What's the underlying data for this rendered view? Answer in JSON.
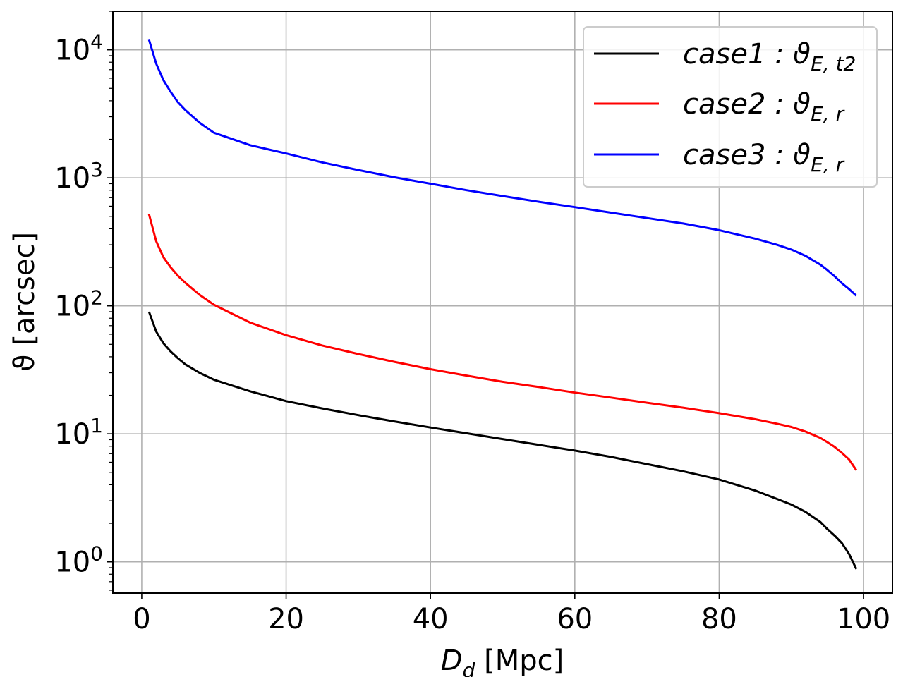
{
  "chart_data": {
    "type": "line",
    "xlabel_main": "D",
    "xlabel_sub": "d",
    "xlabel_unit": " [Mpc]",
    "ylabel": "ϑ [arcsec]",
    "xlim": [
      -4,
      104
    ],
    "ylim": [
      0.57,
      20000
    ],
    "yscale": "log",
    "grid": true,
    "legend_position": "top-right",
    "x_ticks": [
      0,
      20,
      40,
      60,
      80,
      100
    ],
    "x_tick_labels": [
      "0",
      "20",
      "40",
      "60",
      "80",
      "100"
    ],
    "y_ticks": [
      1,
      10,
      100,
      1000,
      10000
    ],
    "y_tick_labels": [
      {
        "base": "10",
        "exp": "0"
      },
      {
        "base": "10",
        "exp": "1"
      },
      {
        "base": "10",
        "exp": "2"
      },
      {
        "base": "10",
        "exp": "3"
      },
      {
        "base": "10",
        "exp": "4"
      }
    ],
    "series": [
      {
        "name": "case1 : ϑ_{E, t2}",
        "legend_main": "case1 : ϑ",
        "legend_sub": "E, t2",
        "color": "#000000",
        "x": [
          1,
          2,
          3,
          4,
          5,
          6,
          8,
          10,
          15,
          20,
          25,
          30,
          35,
          40,
          45,
          50,
          55,
          60,
          65,
          70,
          75,
          80,
          85,
          88,
          90,
          92,
          94,
          95,
          96,
          97,
          98,
          99
        ],
        "y": [
          90,
          63,
          51,
          44,
          39,
          35,
          30,
          26.5,
          21.5,
          18,
          15.8,
          14,
          12.5,
          11.2,
          10.1,
          9.1,
          8.2,
          7.4,
          6.6,
          5.8,
          5.1,
          4.4,
          3.6,
          3.1,
          2.8,
          2.45,
          2.05,
          1.8,
          1.6,
          1.4,
          1.15,
          0.88
        ]
      },
      {
        "name": "case2 : ϑ_{E, r}",
        "legend_main": "case2 : ϑ",
        "legend_sub": "E, r",
        "color": "#ff0000",
        "x": [
          1,
          2,
          3,
          4,
          5,
          6,
          8,
          10,
          15,
          20,
          25,
          30,
          35,
          40,
          45,
          50,
          55,
          60,
          65,
          70,
          75,
          80,
          85,
          88,
          90,
          92,
          94,
          95,
          96,
          97,
          98,
          99
        ],
        "y": [
          520,
          320,
          240,
          200,
          172,
          152,
          122,
          102,
          74,
          59,
          49,
          42,
          36.5,
          32,
          28.5,
          25.5,
          23.2,
          21,
          19.2,
          17.5,
          16,
          14.5,
          13,
          12,
          11.3,
          10.4,
          9.3,
          8.6,
          7.9,
          7.1,
          6.3,
          5.2
        ]
      },
      {
        "name": "case3 : ϑ_{E, r}",
        "legend_main": "case3 : ϑ",
        "legend_sub": "E, r",
        "color": "#0000ff",
        "x": [
          1,
          2,
          3,
          4,
          5,
          6,
          8,
          10,
          15,
          20,
          25,
          30,
          35,
          40,
          45,
          50,
          55,
          60,
          65,
          70,
          75,
          80,
          85,
          88,
          90,
          92,
          94,
          95,
          96,
          97,
          98,
          99
        ],
        "y": [
          12000,
          7800,
          5800,
          4700,
          3900,
          3400,
          2700,
          2250,
          1800,
          1550,
          1320,
          1150,
          1010,
          900,
          800,
          720,
          650,
          590,
          535,
          485,
          440,
          390,
          335,
          300,
          275,
          245,
          210,
          190,
          170,
          150,
          135,
          120
        ]
      }
    ]
  }
}
